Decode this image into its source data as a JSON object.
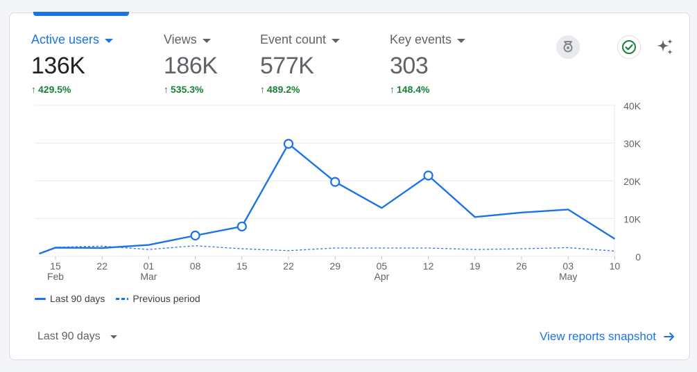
{
  "metrics": [
    {
      "label": "Active users",
      "value": "136K",
      "change": "429.5%",
      "active": true
    },
    {
      "label": "Views",
      "value": "186K",
      "change": "535.3%",
      "active": false
    },
    {
      "label": "Event count",
      "value": "577K",
      "change": "489.2%",
      "active": false
    },
    {
      "label": "Key events",
      "value": "303",
      "change": "148.4%",
      "active": false
    }
  ],
  "icons": {
    "badge": "ribbon-badge-icon",
    "check": "check-circle-icon",
    "sparkle": "sparkle-icon"
  },
  "colors": {
    "accent": "#1a73e8",
    "positive": "#188038",
    "muted": "#5f6368"
  },
  "legend": {
    "current": "Last 90 days",
    "previous": "Previous period"
  },
  "date_range": {
    "selected": "Last 90 days"
  },
  "link": {
    "label": "View reports snapshot"
  },
  "chart_data": {
    "type": "line",
    "x_ticks": [
      {
        "day": "15",
        "month": "Feb"
      },
      {
        "day": "22",
        "month": ""
      },
      {
        "day": "01",
        "month": "Mar"
      },
      {
        "day": "08",
        "month": ""
      },
      {
        "day": "15",
        "month": ""
      },
      {
        "day": "22",
        "month": ""
      },
      {
        "day": "29",
        "month": ""
      },
      {
        "day": "05",
        "month": "Apr"
      },
      {
        "day": "12",
        "month": ""
      },
      {
        "day": "19",
        "month": ""
      },
      {
        "day": "26",
        "month": ""
      },
      {
        "day": "03",
        "month": "May"
      },
      {
        "day": "10",
        "month": ""
      }
    ],
    "y_ticks": [
      "40K",
      "30K",
      "20K",
      "10K",
      "0"
    ],
    "ylim": [
      0,
      40000
    ],
    "series": [
      {
        "name": "Last 90 days",
        "style": "solid",
        "points": [
          [
            -0.35,
            700
          ],
          [
            0.0,
            2300
          ],
          [
            1.0,
            2200
          ],
          [
            2.0,
            3000
          ],
          [
            3.0,
            5500
          ],
          [
            4.0,
            7900
          ],
          [
            5.0,
            29800
          ],
          [
            6.0,
            19700
          ],
          [
            7.0,
            12800
          ],
          [
            8.0,
            21400
          ],
          [
            9.0,
            10400
          ],
          [
            10.0,
            11600
          ],
          [
            11.0,
            12400
          ],
          [
            12.0,
            4600
          ]
        ],
        "markers": [
          3.0,
          4.0,
          5.0,
          6.0,
          8.0
        ]
      },
      {
        "name": "Previous period",
        "style": "dashed",
        "points": [
          [
            -0.35,
            800
          ],
          [
            0.0,
            2400
          ],
          [
            1.0,
            2700
          ],
          [
            2.0,
            1800
          ],
          [
            3.0,
            2800
          ],
          [
            4.0,
            2000
          ],
          [
            5.0,
            1500
          ],
          [
            6.0,
            2200
          ],
          [
            7.0,
            2200
          ],
          [
            8.0,
            2200
          ],
          [
            9.0,
            1800
          ],
          [
            10.0,
            2000
          ],
          [
            11.0,
            2300
          ],
          [
            12.0,
            1400
          ]
        ]
      }
    ]
  }
}
